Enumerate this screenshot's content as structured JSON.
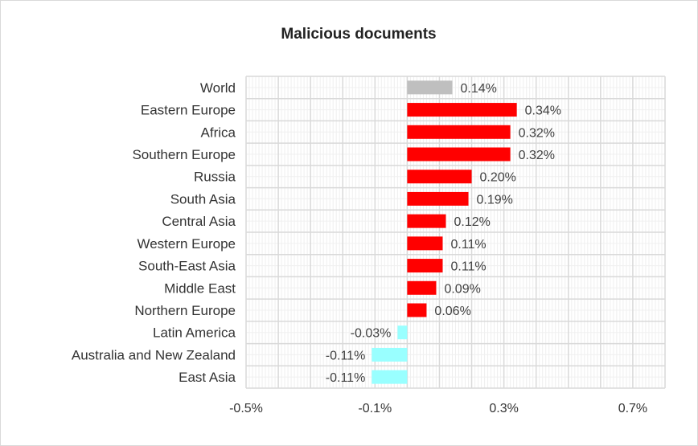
{
  "chart_data": {
    "type": "bar",
    "orientation": "horizontal",
    "title": "Malicious documents",
    "categories": [
      "World",
      "Eastern Europe",
      "Africa",
      "Southern Europe",
      "Russia",
      "South Asia",
      "Central Asia",
      "Western Europe",
      "South-East Asia",
      "Middle East",
      "Northern Europe",
      "Latin America",
      "Australia and New Zealand",
      "East Asia"
    ],
    "values": [
      0.14,
      0.34,
      0.32,
      0.32,
      0.2,
      0.19,
      0.12,
      0.11,
      0.11,
      0.09,
      0.06,
      -0.03,
      -0.11,
      -0.11
    ],
    "data_labels": [
      "0.14%",
      "0.34%",
      "0.32%",
      "0.32%",
      "0.20%",
      "0.19%",
      "0.12%",
      "0.11%",
      "0.11%",
      "0.09%",
      "0.06%",
      "-0.03%",
      "-0.11%",
      "-0.11%"
    ],
    "x_ticks": [
      -0.5,
      -0.1,
      0.3,
      0.7
    ],
    "x_tick_labels": [
      "-0.5%",
      "-0.1%",
      "0.3%",
      "0.7%"
    ],
    "xlim": [
      -0.5,
      0.8
    ],
    "grid": true,
    "colors": {
      "world": "#bfbfbf",
      "positive": "#ff0000",
      "negative": "#99ffff"
    }
  }
}
